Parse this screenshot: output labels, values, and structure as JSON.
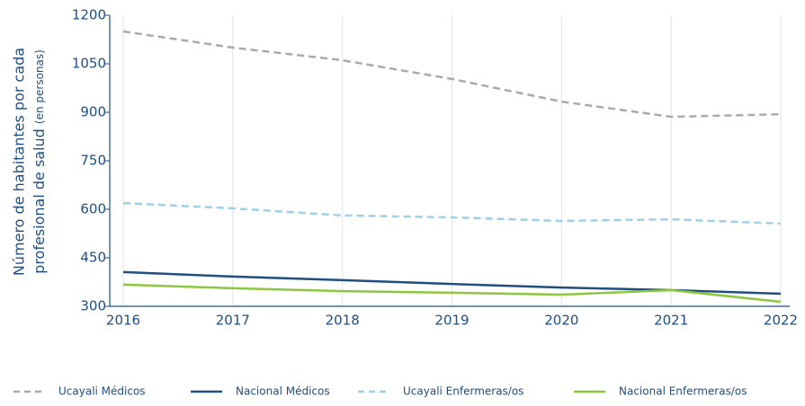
{
  "chart_data": {
    "type": "line",
    "ylabel": [
      "Número de habitantes por cada",
      "profesional de salud"
    ],
    "ylabel_note": "(en personas)",
    "categories": [
      "2016",
      "2017",
      "2018",
      "2019",
      "2020",
      "2021",
      "2022"
    ],
    "series": [
      {
        "name": "Ucayali Médicos",
        "color": "#aaaaaa",
        "dashed": true,
        "values": [
          1150,
          1100,
          1061,
          1003,
          933,
          886,
          894
        ]
      },
      {
        "name": "Nacional Médicos",
        "color": "#1f4e80",
        "dashed": false,
        "values": [
          406,
          392,
          381,
          369,
          358,
          350,
          339
        ]
      },
      {
        "name": "Ucayali Enfermeras/os",
        "color": "#9dd0e6",
        "dashed": true,
        "values": [
          619,
          603,
          581,
          575,
          564,
          569,
          556
        ]
      },
      {
        "name": "Nacional Enfermeras/os",
        "color": "#8dc63f",
        "dashed": false,
        "values": [
          367,
          356,
          347,
          342,
          336,
          350,
          314
        ]
      }
    ],
    "ylim": [
      300,
      1200
    ],
    "yticks": [
      300,
      450,
      600,
      750,
      900,
      1050,
      1200
    ],
    "grid": "x"
  }
}
